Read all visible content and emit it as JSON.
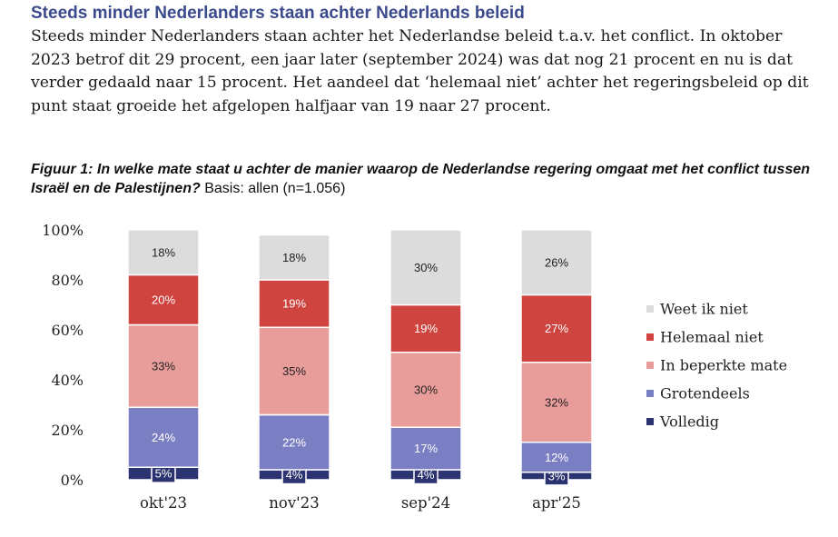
{
  "heading": "Steeds minder Nederlanders staan achter Nederlands beleid",
  "intro": "Steeds minder Nederlanders staan achter het Nederlandse beleid t.a.v. het conflict. In oktober 2023 betrof dit 29 procent, een jaar later (september 2024) was dat nog 21 procent en nu is dat verder gedaald naar 15 procent. Het aandeel dat ‘helemaal niet’ achter het regeringsbeleid op dit punt staat groeide het afgelopen halfjaar van 19 naar 27 procent.",
  "figure": {
    "question": "Figuur 1: In welke mate staat u achter de manier waarop de Nederlandse regering omgaat met het conflict tussen Israël en de Palestijnen?",
    "basis": "Basis: allen (n=1.056)"
  },
  "chart_data": {
    "type": "bar",
    "stacked": true,
    "categories": [
      "okt'23",
      "nov'23",
      "sep'24",
      "apr'25"
    ],
    "yticks": [
      "0%",
      "20%",
      "40%",
      "60%",
      "80%",
      "100%"
    ],
    "ylim": [
      0,
      100
    ],
    "legend_position": "right",
    "series": [
      {
        "name": "Volledig",
        "color": "#2b3470",
        "values": [
          5,
          4,
          4,
          3
        ],
        "labels": [
          "5%",
          "4%",
          "4%",
          "3%"
        ]
      },
      {
        "name": "Grotendeels",
        "color": "#7a7fc4",
        "values": [
          24,
          22,
          17,
          12
        ],
        "labels": [
          "24%",
          "22%",
          "17%",
          "12%"
        ]
      },
      {
        "name": "In beperkte mate",
        "color": "#e99d9b",
        "values": [
          33,
          35,
          30,
          32
        ],
        "labels": [
          "33%",
          "35%",
          "30%",
          "32%"
        ]
      },
      {
        "name": "Helemaal niet",
        "color": "#cf443f",
        "values": [
          20,
          19,
          19,
          27
        ],
        "labels": [
          "20%",
          "19%",
          "19%",
          "27%"
        ]
      },
      {
        "name": "Weet ik niet",
        "color": "#dcdcdc",
        "values": [
          18,
          18,
          30,
          26
        ],
        "labels": [
          "18%",
          "18%",
          "30%",
          "26%"
        ]
      }
    ]
  }
}
